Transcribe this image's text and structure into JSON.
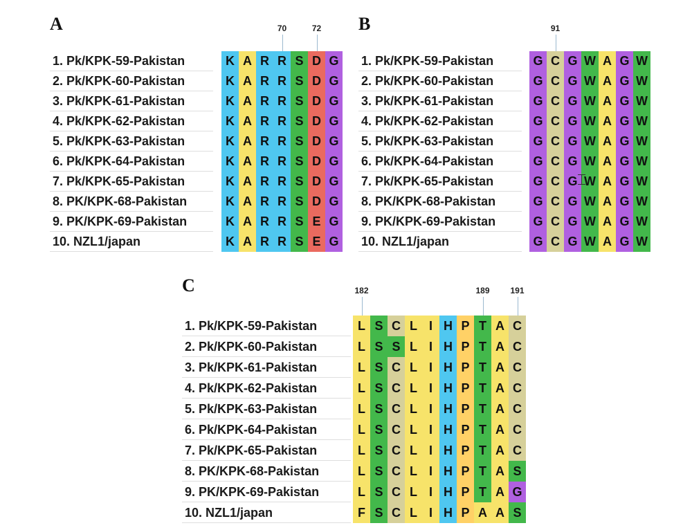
{
  "colors": {
    "K": "#4fc7f0",
    "R": "#4fc7f0",
    "H": "#4fc7f0",
    "A": "#f7e36a",
    "L": "#f7e36a",
    "I": "#f7e36a",
    "F": "#f7e36a",
    "S": "#43b84b",
    "T": "#43b84b",
    "W": "#43b84b",
    "D": "#ea6a5f",
    "E": "#ea6a5f",
    "G": "#b060e0",
    "C": "#d6d09a",
    "P": "#ffd166"
  },
  "panels": [
    {
      "letter": "A",
      "names": [
        "1. Pk/KPK-59-Pakistan",
        "2. Pk/KPK-60-Pakistan",
        "3. Pk/KPK-61-Pakistan",
        "4. Pk/KPK-62-Pakistan",
        "5. Pk/KPK-63-Pakistan",
        "6. Pk/KPK-64-Pakistan",
        "7. Pk/KPK-65-Pakistan",
        "8. PK/KPK-68-Pakistan",
        "9. PK/KPK-69-Pakistan",
        "10. NZL1/japan"
      ],
      "sequences": [
        "KARRSDG",
        "KARRSDG",
        "KARRSDG",
        "KARRSDG",
        "KARRSDG",
        "KARRSDG",
        "KARRSDG",
        "KARRSDG",
        "KARRSEG",
        "KARRSEG"
      ],
      "position_labels": [
        {
          "text": "70",
          "col": 3
        },
        {
          "text": "72",
          "col": 5
        }
      ]
    },
    {
      "letter": "B",
      "names": [
        "1. Pk/KPK-59-Pakistan",
        "2. Pk/KPK-60-Pakistan",
        "3. Pk/KPK-61-Pakistan",
        "4. Pk/KPK-62-Pakistan",
        "5. Pk/KPK-63-Pakistan",
        "6. Pk/KPK-64-Pakistan",
        "7. Pk/KPK-65-Pakistan",
        "8. PK/KPK-68-Pakistan",
        "9. PK/KPK-69-Pakistan",
        "10. NZL1/japan"
      ],
      "sequences": [
        "GCGWAGW",
        "GCGWAGW",
        "GCGWAGW",
        "GCGWAGW",
        "GCGWAGW",
        "GCGWAGW",
        "GCGWAGW",
        "GCGWAGW",
        "GCGWAGW",
        "GCGWAGW"
      ],
      "position_labels": [
        {
          "text": "91",
          "col": 1
        }
      ]
    },
    {
      "letter": "C",
      "names": [
        "1. Pk/KPK-59-Pakistan",
        "2. Pk/KPK-60-Pakistan",
        "3. Pk/KPK-61-Pakistan",
        "4. Pk/KPK-62-Pakistan",
        "5. Pk/KPK-63-Pakistan",
        "6. Pk/KPK-64-Pakistan",
        "7. Pk/KPK-65-Pakistan",
        "8. PK/KPK-68-Pakistan",
        "9. PK/KPK-69-Pakistan",
        "10. NZL1/japan"
      ],
      "sequences": [
        "LSCLIHPTAC",
        "LSSLIHPTAC",
        "LSCLIHPTAC",
        "LSCLIHPTAC",
        "LSCLIHPTAC",
        "LSCLIHPTAC",
        "LSCLIHPTAC",
        "LSCLIHPTAS",
        "LSCLIHPTAG",
        "FSCLIHPAAS"
      ],
      "position_labels": [
        {
          "text": "182",
          "col": 0
        },
        {
          "text": "189",
          "col": 7
        },
        {
          "text": "191",
          "col": 9
        }
      ]
    }
  ]
}
